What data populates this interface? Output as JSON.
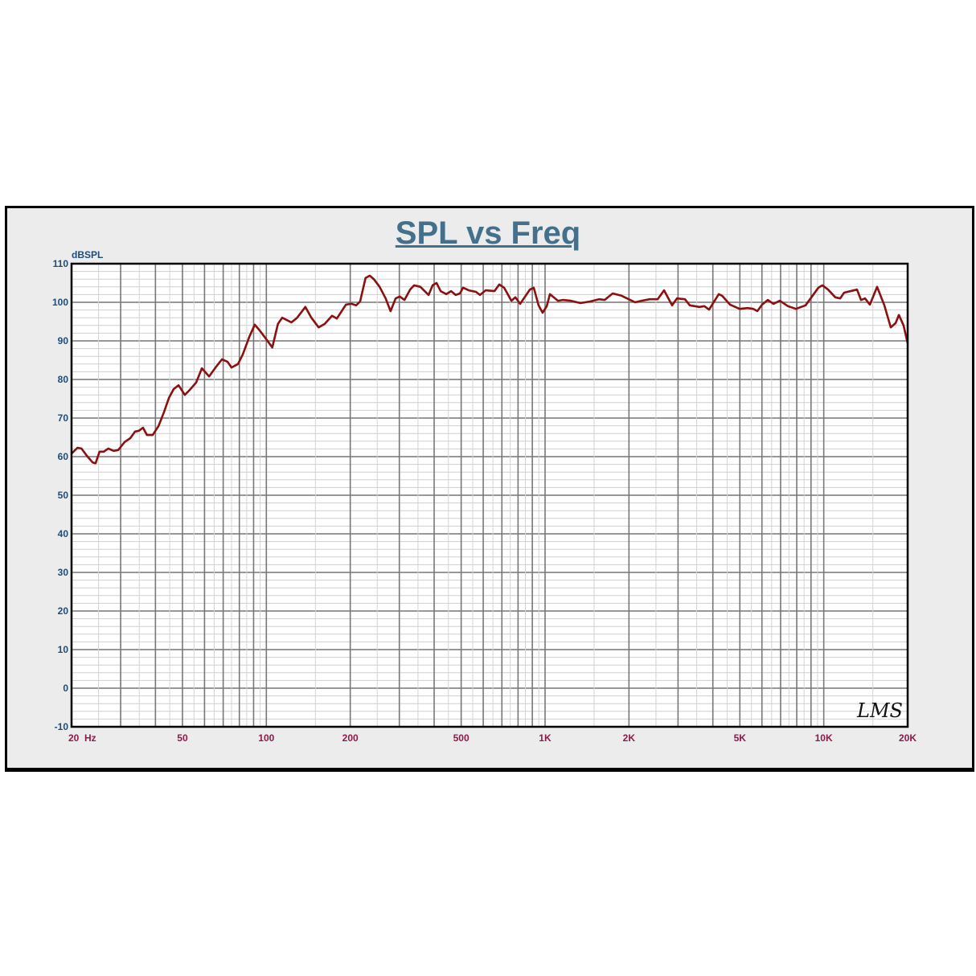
{
  "chart_data": {
    "type": "line",
    "title": "SPL vs Freq",
    "ylabel": "dBSPL",
    "xlabel": "",
    "x_scale": "log",
    "xlim": [
      20,
      20000
    ],
    "ylim": [
      -10,
      110
    ],
    "grid": true,
    "y_ticks": [
      "110",
      "100",
      "90",
      "80",
      "70",
      "60",
      "50",
      "40",
      "30",
      "20",
      "10",
      "0",
      "-10"
    ],
    "x_ticks": [
      {
        "value": 20,
        "label": "20  Hz"
      },
      {
        "value": 50,
        "label": "50"
      },
      {
        "value": 100,
        "label": "100"
      },
      {
        "value": 200,
        "label": "200"
      },
      {
        "value": 500,
        "label": "500"
      },
      {
        "value": 1000,
        "label": "1K"
      },
      {
        "value": 2000,
        "label": "2K"
      },
      {
        "value": 5000,
        "label": "5K"
      },
      {
        "value": 10000,
        "label": "10K"
      },
      {
        "value": 20000,
        "label": "20K"
      }
    ],
    "series": [
      {
        "color": "#8b1010",
        "points": [
          [
            20,
            60.8
          ],
          [
            21,
            62.3
          ],
          [
            21.7,
            62.1
          ],
          [
            22.7,
            60.2
          ],
          [
            23.8,
            58.5
          ],
          [
            24.4,
            58.3
          ],
          [
            25.2,
            61.3
          ],
          [
            26.1,
            61.3
          ],
          [
            27.1,
            62.1
          ],
          [
            28.3,
            61.5
          ],
          [
            29.4,
            61.7
          ],
          [
            31,
            63.8
          ],
          [
            32.5,
            64.8
          ],
          [
            33.8,
            66.5
          ],
          [
            34.9,
            66.7
          ],
          [
            36.1,
            67.5
          ],
          [
            37.3,
            65.6
          ],
          [
            39.1,
            65.6
          ],
          [
            41,
            67.9
          ],
          [
            42.9,
            71.5
          ],
          [
            44.7,
            75.2
          ],
          [
            46.5,
            77.5
          ],
          [
            48.4,
            78.5
          ],
          [
            51,
            76
          ],
          [
            53.1,
            77.3
          ],
          [
            56,
            79.2
          ],
          [
            58.7,
            82.9
          ],
          [
            62.3,
            80.8
          ],
          [
            65.7,
            83.1
          ],
          [
            69.3,
            85.2
          ],
          [
            72.5,
            84.6
          ],
          [
            75,
            83.1
          ],
          [
            79.1,
            84
          ],
          [
            82.3,
            86.5
          ],
          [
            86.8,
            91
          ],
          [
            90.9,
            94.2
          ],
          [
            94.6,
            92.7
          ],
          [
            99.1,
            90.8
          ],
          [
            105,
            88.3
          ],
          [
            110,
            94.4
          ],
          [
            114,
            96
          ],
          [
            123,
            94.8
          ],
          [
            129,
            96
          ],
          [
            138,
            98.8
          ],
          [
            145,
            96
          ],
          [
            154,
            93.5
          ],
          [
            162,
            94.4
          ],
          [
            172,
            96.5
          ],
          [
            179,
            95.8
          ],
          [
            193,
            99.4
          ],
          [
            202,
            99.6
          ],
          [
            210,
            99.2
          ],
          [
            217,
            100.2
          ],
          [
            227,
            106.3
          ],
          [
            235,
            106.9
          ],
          [
            243,
            106
          ],
          [
            255,
            104
          ],
          [
            268,
            101
          ],
          [
            279,
            97.7
          ],
          [
            291,
            101
          ],
          [
            301,
            101.5
          ],
          [
            313,
            100.6
          ],
          [
            328,
            103.3
          ],
          [
            339,
            104.4
          ],
          [
            357,
            104
          ],
          [
            382,
            101.9
          ],
          [
            395,
            104.4
          ],
          [
            408,
            105
          ],
          [
            422,
            102.9
          ],
          [
            442,
            102.1
          ],
          [
            460,
            102.9
          ],
          [
            478,
            101.9
          ],
          [
            495,
            102.3
          ],
          [
            508,
            103.8
          ],
          [
            532,
            103.1
          ],
          [
            565,
            102.7
          ],
          [
            584,
            101.9
          ],
          [
            612,
            103.1
          ],
          [
            658,
            102.9
          ],
          [
            685,
            104.6
          ],
          [
            713,
            103.8
          ],
          [
            757,
            100.4
          ],
          [
            782,
            101.3
          ],
          [
            814,
            99.6
          ],
          [
            882,
            103.3
          ],
          [
            911,
            103.8
          ],
          [
            948,
            99.2
          ],
          [
            980,
            97.3
          ],
          [
            1014,
            99
          ],
          [
            1041,
            102.1
          ],
          [
            1112,
            100.4
          ],
          [
            1158,
            100.6
          ],
          [
            1237,
            100.4
          ],
          [
            1340,
            99.8
          ],
          [
            1451,
            100.2
          ],
          [
            1561,
            100.8
          ],
          [
            1635,
            100.6
          ],
          [
            1748,
            102.3
          ],
          [
            1880,
            101.7
          ],
          [
            1995,
            100.8
          ],
          [
            2104,
            100
          ],
          [
            2220,
            100.4
          ],
          [
            2371,
            100.8
          ],
          [
            2534,
            100.8
          ],
          [
            2673,
            103.1
          ],
          [
            2856,
            99.2
          ],
          [
            2972,
            101
          ],
          [
            3177,
            100.8
          ],
          [
            3306,
            99.2
          ],
          [
            3582,
            98.8
          ],
          [
            3728,
            99
          ],
          [
            3878,
            98.1
          ],
          [
            4200,
            102.1
          ],
          [
            4314,
            101.7
          ],
          [
            4608,
            99.4
          ],
          [
            4992,
            98.3
          ],
          [
            5334,
            98.5
          ],
          [
            5588,
            98.3
          ],
          [
            5776,
            97.7
          ],
          [
            6010,
            99.4
          ],
          [
            6296,
            100.6
          ],
          [
            6596,
            99.6
          ],
          [
            6956,
            100.4
          ],
          [
            7434,
            99
          ],
          [
            7944,
            98.3
          ],
          [
            8602,
            99.2
          ],
          [
            9072,
            101.5
          ],
          [
            9568,
            103.8
          ],
          [
            9890,
            104.4
          ],
          [
            10360,
            103.3
          ],
          [
            11000,
            101.3
          ],
          [
            11450,
            101
          ],
          [
            11836,
            102.5
          ],
          [
            13160,
            103.3
          ],
          [
            13608,
            100.6
          ],
          [
            14066,
            101
          ],
          [
            14640,
            99.4
          ],
          [
            15540,
            104
          ],
          [
            16500,
            99.2
          ],
          [
            17400,
            93.5
          ],
          [
            18100,
            94.6
          ],
          [
            18600,
            96.7
          ],
          [
            19340,
            94
          ],
          [
            20000,
            89.4
          ]
        ]
      }
    ]
  },
  "logo": "LMS"
}
